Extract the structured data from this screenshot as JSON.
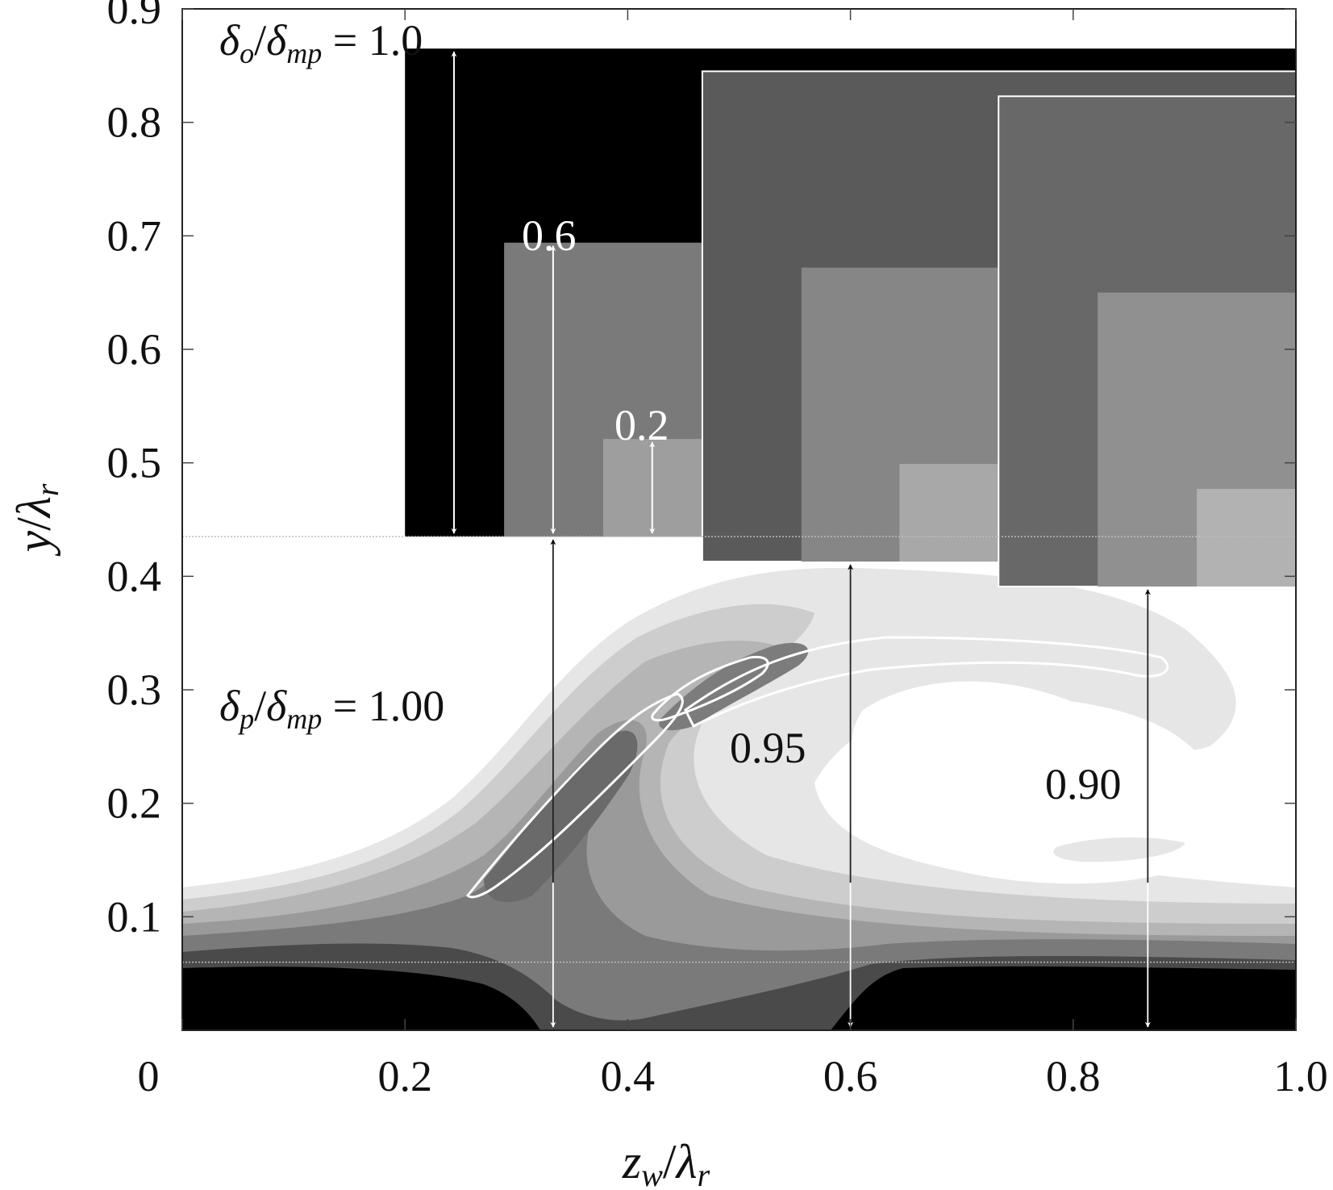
{
  "chart_data": {
    "type": "heatmap",
    "xlabel": "z_w/λ_r",
    "ylabel": "y/λ_r",
    "xlim": [
      0,
      1.0
    ],
    "ylim": [
      0,
      0.9
    ],
    "xticks": [
      0,
      0.2,
      0.4,
      0.6,
      0.8,
      1.0
    ],
    "xtick_labels": [
      "0",
      "0.2",
      "0.4",
      "0.6",
      "0.8",
      "1.0"
    ],
    "yticks": [
      0.1,
      0.2,
      0.3,
      0.4,
      0.5,
      0.6,
      0.7,
      0.8,
      0.9
    ],
    "ytick_labels": [
      "0.1",
      "0.2",
      "0.3",
      "0.4",
      "0.5",
      "0.6",
      "0.7",
      "0.8",
      "0.9"
    ],
    "reference_lines_y": [
      0.435,
      0.06
    ],
    "outer_boxes": [
      {
        "label": "δo/δmp = 1.0",
        "x0": 0.2,
        "x1": 1.0,
        "y0": 0.435,
        "y1": 0.865,
        "color": "#000000",
        "inner_heights": [
          0.6,
          0.2
        ]
      },
      {
        "x0": 0.467,
        "x1": 1.0,
        "y0": 0.413,
        "y1": 0.845,
        "color": "#5a5a5a"
      },
      {
        "x0": 0.733,
        "x1": 1.0,
        "y0": 0.391,
        "y1": 0.823,
        "color": "#686868"
      }
    ],
    "inner_boxes": [
      {
        "label": "0.6",
        "x0": 0.289,
        "x1": 0.467,
        "y0": 0.435,
        "y1": 0.694,
        "color": "#7a7a7a"
      },
      {
        "label": "0.2",
        "x0": 0.378,
        "x1": 0.467,
        "y0": 0.435,
        "y1": 0.521,
        "color": "#9e9e9e"
      },
      {
        "x0": 0.556,
        "x1": 0.733,
        "y0": 0.413,
        "y1": 0.672,
        "color": "#868686"
      },
      {
        "x0": 0.644,
        "x1": 0.733,
        "y0": 0.413,
        "y1": 0.499,
        "color": "#a8a8a8"
      },
      {
        "x0": 0.822,
        "x1": 1.0,
        "y0": 0.391,
        "y1": 0.65,
        "color": "#909090"
      },
      {
        "x0": 0.911,
        "x1": 1.0,
        "y0": 0.391,
        "y1": 0.477,
        "color": "#b2b2b2"
      }
    ],
    "thickness_annotations": [
      {
        "label": "δp/δmp = 1.00",
        "x": 0.333,
        "y_top": 0.435
      },
      {
        "label": "0.95",
        "x": 0.6,
        "y_top": 0.413
      },
      {
        "label": "0.90",
        "x": 0.867,
        "y_top": 0.391
      }
    ],
    "arrows_box": [
      {
        "x": 0.244,
        "y0": 0.435,
        "y1": 0.865
      },
      {
        "x": 0.333,
        "y0": 0.435,
        "y1": 0.694
      },
      {
        "x": 0.422,
        "y0": 0.435,
        "y1": 0.521
      }
    ]
  },
  "annotations": {
    "delta_o_label": "δo/δmp = 1.0",
    "delta_p_label": "δp/δmp = 1.00",
    "label_06": "0.6",
    "label_02": "0.2",
    "label_095": "0.95",
    "label_090": "0.90"
  }
}
